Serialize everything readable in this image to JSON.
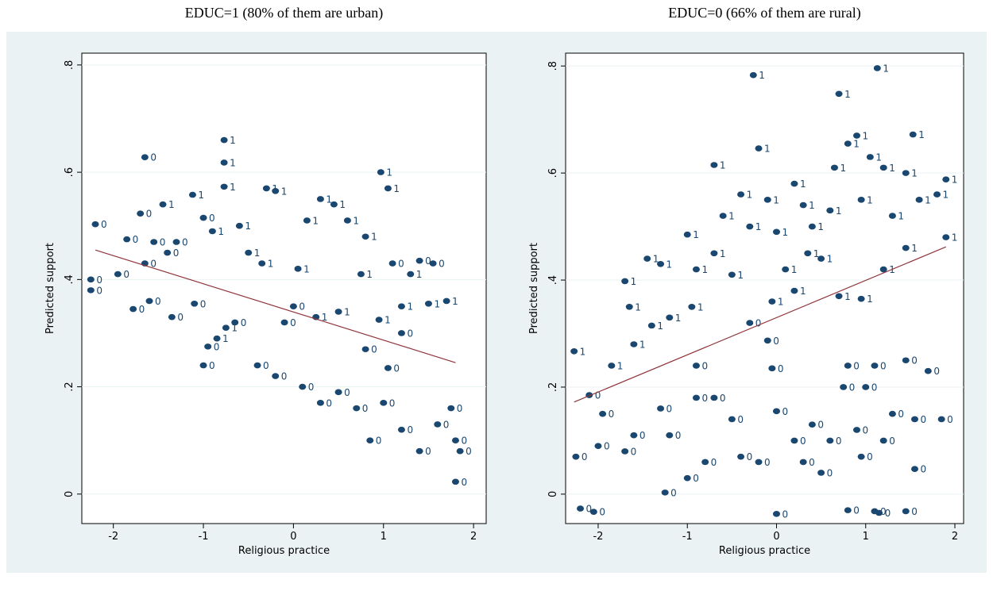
{
  "chart_data": [
    {
      "type": "scatter",
      "title": "EDUC=1 (80% of them are urban)",
      "x_label": "Religious practice",
      "y_label": "Predicted support",
      "xlim": [
        -2.35,
        2.14
      ],
      "ylim": [
        -0.055,
        0.822
      ],
      "xticks": [
        -2,
        -1,
        0,
        1,
        2
      ],
      "yticks": [
        {
          "value": 0,
          "label": "0"
        },
        {
          "value": 0.2,
          "label": ".2"
        },
        {
          "value": 0.4,
          "label": ".4"
        },
        {
          "value": 0.6,
          "label": ".6"
        },
        {
          "value": 0.8,
          "label": ".8"
        }
      ],
      "grid": true,
      "points": {
        "color": "#1a476f",
        "x": [
          -1.65,
          -0.77,
          -0.77,
          -0.77,
          -2.2,
          -1.7,
          -1.45,
          -1.12,
          -2.25,
          -2.25,
          -1.95,
          -1.65,
          -1.4,
          -1.78,
          -1.6,
          -1.35,
          -1.1,
          -0.95,
          -0.85,
          -0.75,
          -0.65,
          -1.0,
          -0.4,
          -0.2,
          0.1,
          0.3,
          0.5,
          0.7,
          -0.3,
          -0.2,
          0.15,
          0.3,
          0.45,
          0.6,
          0.8,
          0.97,
          1.05,
          1.1,
          1.4,
          1.55,
          1.3,
          1.5,
          1.7,
          1.2,
          0.75,
          0.95,
          1.2,
          1.05,
          0.5,
          0.0,
          -0.1,
          0.25,
          0.8,
          1.0,
          1.2,
          1.4,
          1.6,
          1.75,
          1.8,
          1.85,
          1.8,
          0.85,
          -0.5,
          -0.35,
          0.05,
          -0.6,
          -0.9,
          -1.0,
          -1.3,
          -1.55,
          -1.85
        ],
        "y": [
          0.628,
          0.66,
          0.618,
          0.573,
          0.503,
          0.523,
          0.54,
          0.558,
          0.4,
          0.38,
          0.41,
          0.43,
          0.45,
          0.345,
          0.36,
          0.33,
          0.355,
          0.275,
          0.29,
          0.31,
          0.32,
          0.24,
          0.24,
          0.22,
          0.2,
          0.17,
          0.19,
          0.16,
          0.57,
          0.565,
          0.51,
          0.55,
          0.54,
          0.51,
          0.48,
          0.6,
          0.57,
          0.43,
          0.435,
          0.43,
          0.41,
          0.355,
          0.36,
          0.35,
          0.41,
          0.325,
          0.3,
          0.235,
          0.34,
          0.35,
          0.32,
          0.33,
          0.27,
          0.17,
          0.12,
          0.08,
          0.13,
          0.16,
          0.1,
          0.08,
          0.023,
          0.1,
          0.45,
          0.43,
          0.42,
          0.5,
          0.49,
          0.515,
          0.47,
          0.47,
          0.475
        ],
        "marker_labels": [
          0,
          1,
          1,
          1,
          0,
          0,
          1,
          1,
          0,
          0,
          0,
          0,
          0,
          0,
          0,
          0,
          0,
          0,
          1,
          1,
          0,
          0,
          0,
          0,
          0,
          0,
          0,
          0,
          1,
          1,
          1,
          1,
          1,
          1,
          1,
          1,
          1,
          0,
          0,
          0,
          1,
          1,
          1,
          1,
          1,
          1,
          0,
          0,
          1,
          0,
          0,
          1,
          0,
          0,
          0,
          0,
          0,
          0,
          0,
          0,
          0,
          0,
          1,
          1,
          1,
          1,
          1,
          0,
          0,
          0,
          0
        ]
      },
      "fit_line": {
        "color": "#90353b",
        "x": [
          -2.2,
          1.8
        ],
        "y": [
          0.455,
          0.245
        ]
      }
    },
    {
      "type": "scatter",
      "title": "EDUC=0 (66% of them are rural)",
      "x_label": "Religious practice",
      "y_label": "Predicted support",
      "xlim": [
        -2.365,
        2.098
      ],
      "ylim": [
        -0.055,
        0.824
      ],
      "xticks": [
        -2,
        -1,
        0,
        1,
        2
      ],
      "yticks": [
        {
          "value": 0,
          "label": "0"
        },
        {
          "value": 0.2,
          "label": ".2"
        },
        {
          "value": 0.4,
          "label": ".4"
        },
        {
          "value": 0.6,
          "label": ".6"
        },
        {
          "value": 0.8,
          "label": ".8"
        }
      ],
      "grid": true,
      "points": {
        "color": "#1a476f",
        "x": [
          -2.27,
          -1.85,
          -1.6,
          -1.65,
          -1.7,
          -1.45,
          -1.3,
          -1.4,
          -1.2,
          -1.0,
          -0.9,
          -0.95,
          -0.7,
          -0.6,
          -0.7,
          -0.5,
          -0.4,
          -0.3,
          -0.26,
          -0.2,
          -0.1,
          0.0,
          0.1,
          0.2,
          0.3,
          0.35,
          0.4,
          0.5,
          0.6,
          0.65,
          0.7,
          0.8,
          0.9,
          0.95,
          1.05,
          1.13,
          1.2,
          1.3,
          1.45,
          1.53,
          1.6,
          1.8,
          1.9,
          1.9,
          1.45,
          1.2,
          0.95,
          0.7,
          0.2,
          -0.05,
          -0.3,
          -0.1,
          -0.9,
          -0.9,
          -0.7,
          -0.05,
          -2.1,
          -1.95,
          -2.25,
          -2.0,
          -1.7,
          -1.6,
          -1.3,
          -1.2,
          -1.0,
          -0.8,
          -0.5,
          -0.4,
          -0.2,
          0.0,
          0.2,
          0.3,
          0.4,
          0.5,
          0.6,
          0.75,
          0.8,
          0.9,
          1.0,
          1.1,
          1.2,
          1.3,
          1.45,
          1.55,
          1.7,
          1.85,
          1.55,
          1.45,
          1.1,
          0.8,
          0.0,
          -2.2,
          -2.05,
          -1.25,
          0.95,
          1.15
        ],
        "y": [
          0.267,
          0.24,
          0.28,
          0.35,
          0.398,
          0.44,
          0.43,
          0.315,
          0.33,
          0.485,
          0.42,
          0.35,
          0.615,
          0.52,
          0.45,
          0.41,
          0.56,
          0.5,
          0.783,
          0.646,
          0.55,
          0.49,
          0.42,
          0.58,
          0.54,
          0.45,
          0.5,
          0.44,
          0.53,
          0.61,
          0.748,
          0.655,
          0.67,
          0.55,
          0.63,
          0.796,
          0.61,
          0.52,
          0.6,
          0.672,
          0.55,
          0.56,
          0.588,
          0.48,
          0.46,
          0.42,
          0.365,
          0.37,
          0.38,
          0.36,
          0.32,
          0.287,
          0.24,
          0.18,
          0.18,
          0.235,
          0.185,
          0.15,
          0.07,
          0.09,
          0.08,
          0.11,
          0.16,
          0.11,
          0.03,
          0.06,
          0.14,
          0.07,
          0.06,
          0.155,
          0.1,
          0.06,
          0.13,
          0.04,
          0.1,
          0.2,
          0.24,
          0.12,
          0.2,
          0.24,
          0.1,
          0.15,
          0.25,
          0.14,
          0.23,
          0.14,
          0.047,
          -0.032,
          -0.032,
          -0.03,
          -0.037,
          -0.027,
          -0.033,
          0.003,
          0.07,
          -0.035
        ],
        "marker_labels": [
          1,
          1,
          1,
          1,
          1,
          1,
          1,
          1,
          1,
          1,
          1,
          1,
          1,
          1,
          1,
          1,
          1,
          1,
          1,
          1,
          1,
          1,
          1,
          1,
          1,
          1,
          1,
          1,
          1,
          1,
          1,
          1,
          1,
          1,
          1,
          1,
          1,
          1,
          1,
          1,
          1,
          1,
          1,
          1,
          1,
          1,
          1,
          1,
          1,
          1,
          0,
          0,
          0,
          0,
          0,
          0,
          0,
          0,
          0,
          0,
          0,
          0,
          0,
          0,
          0,
          0,
          0,
          0,
          0,
          0,
          0,
          0,
          0,
          0,
          0,
          0,
          0,
          0,
          0,
          0,
          0,
          0,
          0,
          0,
          0,
          0,
          0,
          0,
          0,
          0,
          0,
          0,
          0,
          0,
          0,
          0
        ]
      },
      "fit_line": {
        "color": "#90353b",
        "x": [
          -2.27,
          1.9
        ],
        "y": [
          0.172,
          0.462
        ]
      }
    }
  ]
}
